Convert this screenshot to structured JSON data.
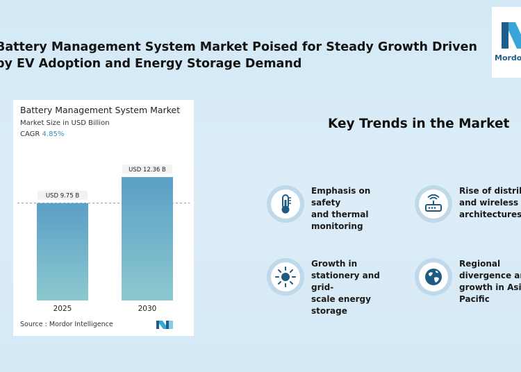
{
  "headline": "Battery Management System Market Poised for Steady Growth Driven by EV Adoption and Energy Storage Demand",
  "logo": {
    "text": "Mordor",
    "color": "#1d5f8a",
    "accent": "#3aa6d8"
  },
  "chart_card": {
    "title": "Battery Management System Market",
    "subtitle": "Market Size in USD Billion",
    "cagr_label": "CAGR",
    "cagr_value": "4.85%",
    "source": "Source : Mordor Intelligence"
  },
  "chart_data": {
    "type": "bar",
    "title": "Battery Management System Market",
    "ylabel": "Market Size in USD Billion",
    "categories": [
      "2025",
      "2030"
    ],
    "values": [
      9.75,
      12.36
    ],
    "data_labels": [
      "USD 9.75 B",
      "USD 12.36 B"
    ],
    "ylim": [
      0,
      13.2
    ],
    "grid": false,
    "reference_line": 9.75,
    "bar_color_top": "#5aa0c6",
    "bar_color_bottom": "#8cc8cf"
  },
  "trends": {
    "title": "Key Trends in the Market",
    "items": [
      {
        "icon": "thermometer-icon",
        "text": "Emphasis on safety\nand thermal\nmonitoring"
      },
      {
        "icon": "router-icon",
        "text": "Rise of distrib\nand wireless B\narchitectures"
      },
      {
        "icon": "sun-icon",
        "text": "Growth in\nstationery and grid-\nscale energy\nstorage"
      },
      {
        "icon": "globe-icon",
        "text": "Regional\ndivergence and\ngrowth in Asia\nPacific"
      }
    ]
  }
}
